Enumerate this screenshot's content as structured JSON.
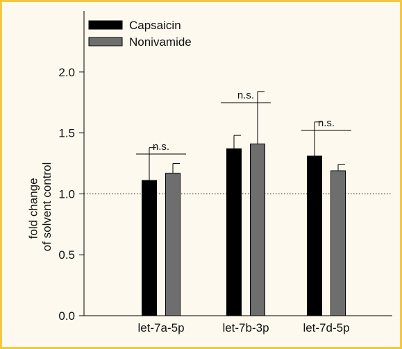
{
  "chart_data": {
    "type": "bar",
    "categories": [
      "let-7a-5p",
      "let-7b-3p",
      "let-7d-5p"
    ],
    "series": [
      {
        "name": "Capsaicin",
        "values": [
          1.11,
          1.37,
          1.31
        ],
        "errors": [
          0.27,
          0.11,
          0.28
        ],
        "color": "#000000"
      },
      {
        "name": "Nonivamide",
        "values": [
          1.17,
          1.41,
          1.19
        ],
        "errors": [
          0.08,
          0.43,
          0.05
        ],
        "color": "#6e6e6e"
      }
    ],
    "annotations": [
      "n.s.",
      "n.s.",
      "n.s."
    ],
    "reference_line": 1.0,
    "title": "",
    "xlabel": "",
    "ylabel_lines": [
      "fold change",
      "of solvent control"
    ],
    "ylim": [
      0,
      2.5
    ],
    "yticks": [
      "0.0",
      "0.5",
      "1.0",
      "1.5",
      "2.0"
    ],
    "ytick_values": [
      0,
      0.5,
      1.0,
      1.5,
      2.0
    ],
    "legend_position": "top-left",
    "grid": false
  }
}
